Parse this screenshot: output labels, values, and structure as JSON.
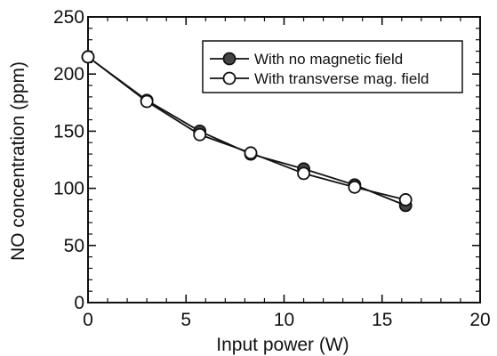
{
  "chart_data": {
    "type": "line",
    "title": "",
    "xlabel": "Input power (W)",
    "ylabel": "NO concentration (ppm)",
    "xlim": [
      0,
      20
    ],
    "ylim": [
      0,
      250
    ],
    "xticks": [
      0,
      5,
      10,
      15,
      20
    ],
    "yticks": [
      0,
      50,
      100,
      150,
      200,
      250
    ],
    "grid": false,
    "legend_position": "top-right",
    "series": [
      {
        "name": "With no magnetic field",
        "marker": "filled-circle",
        "color": "#111111",
        "x": [
          0,
          3.0,
          5.7,
          8.3,
          11.0,
          13.6,
          16.2
        ],
        "y": [
          215,
          177,
          150,
          130,
          117,
          103,
          85
        ]
      },
      {
        "name": "With transverse mag. field",
        "marker": "open-circle",
        "color": "#111111",
        "x": [
          0,
          3.0,
          5.7,
          8.3,
          11.0,
          13.6,
          16.2
        ],
        "y": [
          215,
          176,
          147,
          131,
          113,
          101,
          90
        ]
      }
    ]
  }
}
